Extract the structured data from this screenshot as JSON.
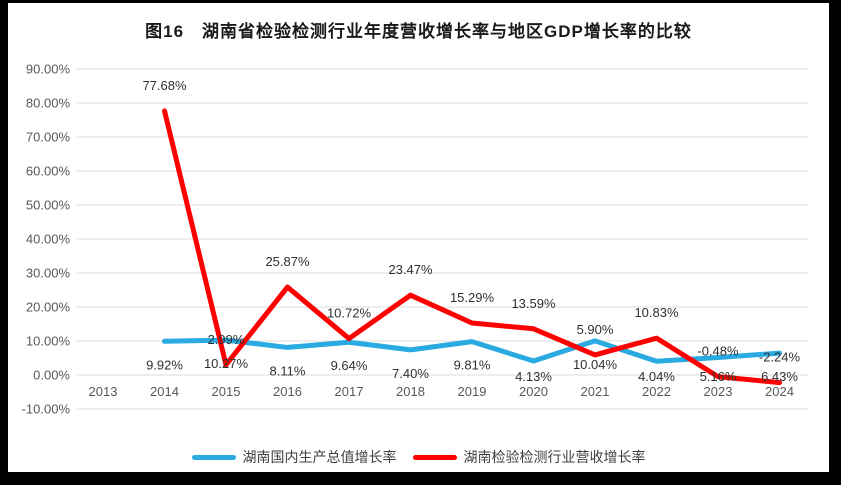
{
  "header": {
    "title": "图16　湖南省检验检测行业年度营收增长率与地区GDP增长率的比较"
  },
  "chart_data": {
    "type": "line",
    "title": "图16　湖南省检验检测行业年度营收增长率与地区GDP增长率的比较",
    "categories": [
      "2013",
      "2014",
      "2015",
      "2016",
      "2017",
      "2018",
      "2019",
      "2020",
      "2021",
      "2022",
      "2023",
      "2024"
    ],
    "series": [
      {
        "name": "湖南国内生产总值增长率",
        "color": "#29ABE2",
        "label_position": "below",
        "values": [
          null,
          9.92,
          10.27,
          8.11,
          9.64,
          7.4,
          9.81,
          4.13,
          10.04,
          4.04,
          5.16,
          6.43
        ],
        "labels": [
          null,
          "9.92%",
          "10.27%",
          "8.11%",
          "9.64%",
          "7.40%",
          "9.81%",
          "4.13%",
          "10.04%",
          "4.04%",
          "5.16%",
          "6.43%"
        ]
      },
      {
        "name": "湖南检验检测行业营收增长率",
        "color": "#FF0000",
        "label_position": "above",
        "values": [
          null,
          77.68,
          2.99,
          25.87,
          10.72,
          23.47,
          15.29,
          13.59,
          5.9,
          10.83,
          -0.48,
          -2.24
        ],
        "labels": [
          null,
          "77.68%",
          "2.99%",
          "25.87%",
          "10.72%",
          "23.47%",
          "15.29%",
          "13.59%",
          "5.90%",
          "10.83%",
          "-0.48%",
          "-2.24%"
        ]
      }
    ],
    "y_axis": {
      "min": -10,
      "max": 90,
      "step": 10,
      "tick_labels": [
        "-10.00%",
        "0.00%",
        "10.00%",
        "20.00%",
        "30.00%",
        "40.00%",
        "50.00%",
        "60.00%",
        "70.00%",
        "80.00%",
        "90.00%"
      ]
    },
    "grid": true,
    "legend_position": "bottom",
    "colors": {
      "gridline": "#DCDCDC",
      "axis_text": "#595959",
      "data_label_text": "#303030",
      "background": "#FFFFFF",
      "frame": "#000000"
    }
  }
}
